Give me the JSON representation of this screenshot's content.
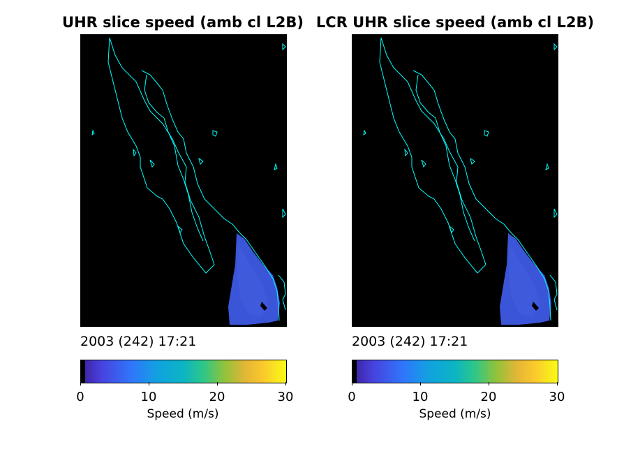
{
  "panels": [
    {
      "title": "UHR slice speed (amb cl L2B)",
      "timestamp": "2003 (242) 17:21",
      "colorbar": {
        "label": "Speed (m/s)",
        "ticks": [
          "0",
          "10",
          "20",
          "30"
        ]
      }
    },
    {
      "title": "LCR UHR slice speed (amb cl L2B)",
      "timestamp": "2003 (242) 17:21",
      "colorbar": {
        "label": "Speed (m/s)",
        "ticks": [
          "0",
          "10",
          "20",
          "30"
        ]
      }
    }
  ],
  "colors": {
    "background": "#000000",
    "coastline": "#00ffff",
    "wind_field": "#3b55d8"
  },
  "colorbar_range": [
    0,
    30
  ],
  "colormap": "parula"
}
